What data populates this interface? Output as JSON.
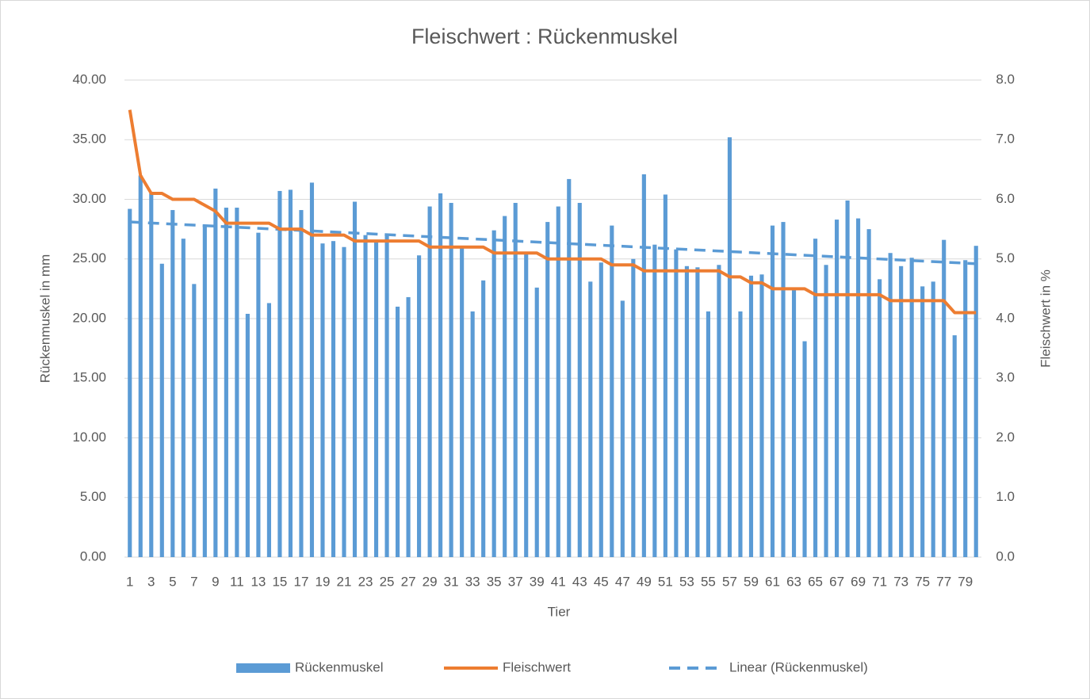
{
  "chart_data": {
    "type": "bar_line",
    "title": "Fleischwert : Rückenmuskel",
    "x_label": "Tier",
    "y_label": "Rückenmuskel in mm",
    "y2_label": "Fleischwert in %",
    "categories": [
      "1",
      null,
      "3",
      null,
      "5",
      null,
      "7",
      null,
      "9",
      null,
      "11",
      null,
      "13",
      null,
      "15",
      null,
      "17",
      null,
      "19",
      null,
      "21",
      null,
      "23",
      null,
      "25",
      null,
      "27",
      null,
      "29",
      null,
      "31",
      null,
      "33",
      null,
      "35",
      null,
      "37",
      null,
      "39",
      null,
      "41",
      null,
      "43",
      null,
      "45",
      null,
      "47",
      null,
      "49",
      null,
      "51",
      null,
      "53",
      null,
      "55",
      null,
      "57",
      null,
      "59",
      null,
      "61",
      null,
      "63",
      null,
      "65",
      null,
      "67",
      null,
      "69",
      null,
      "71",
      null,
      "73",
      null,
      "75",
      null,
      "77",
      null,
      "79",
      null
    ],
    "series": [
      {
        "name": "Rückenmuskel",
        "color": "#5b9bd5",
        "type": "bar",
        "axis": "y",
        "values": [
          29.2,
          32.0,
          30.5,
          24.6,
          29.1,
          26.7,
          22.9,
          27.7,
          30.9,
          29.3,
          29.3,
          20.4,
          27.2,
          21.3,
          30.7,
          30.8,
          29.1,
          31.4,
          26.3,
          26.5,
          26.0,
          29.8,
          27.0,
          26.5,
          27.1,
          21.0,
          21.8,
          25.3,
          29.4,
          30.5,
          29.7,
          26.0,
          20.6,
          23.2,
          27.4,
          28.6,
          29.7,
          25.5,
          22.6,
          28.1,
          29.4,
          31.7,
          29.7,
          23.1,
          24.7,
          27.8,
          21.5,
          25.0,
          32.1,
          26.2,
          30.4,
          25.8,
          24.4,
          24.3,
          20.6,
          24.5,
          35.2,
          20.6,
          23.6,
          23.7,
          27.8,
          28.1,
          22.5,
          18.1,
          26.7,
          24.5,
          28.3,
          29.9,
          28.4,
          27.5,
          23.3,
          25.5,
          24.4,
          25.1,
          22.7,
          23.1,
          26.6,
          18.6,
          24.9,
          26.1
        ]
      },
      {
        "name": "Fleischwert",
        "color": "#ed7d31",
        "type": "line",
        "axis": "y2",
        "values": [
          7.5,
          6.4,
          6.1,
          6.1,
          6.0,
          6.0,
          6.0,
          5.9,
          5.8,
          5.6,
          5.6,
          5.6,
          5.6,
          5.6,
          5.5,
          5.5,
          5.5,
          5.4,
          5.4,
          5.4,
          5.4,
          5.3,
          5.3,
          5.3,
          5.3,
          5.3,
          5.3,
          5.3,
          5.2,
          5.2,
          5.2,
          5.2,
          5.2,
          5.2,
          5.1,
          5.1,
          5.1,
          5.1,
          5.1,
          5.0,
          5.0,
          5.0,
          5.0,
          5.0,
          5.0,
          4.9,
          4.9,
          4.9,
          4.8,
          4.8,
          4.8,
          4.8,
          4.8,
          4.8,
          4.8,
          4.8,
          4.7,
          4.7,
          4.6,
          4.6,
          4.5,
          4.5,
          4.5,
          4.5,
          4.4,
          4.4,
          4.4,
          4.4,
          4.4,
          4.4,
          4.4,
          4.3,
          4.3,
          4.3,
          4.3,
          4.3,
          4.3,
          4.1,
          4.1,
          4.1
        ]
      }
    ],
    "trendline": {
      "name": "Linear (Rückenmuskel)",
      "color": "#5b9bd5",
      "kind": "linear",
      "of_series": 0
    },
    "ylim": [
      0,
      40
    ],
    "yticks": [
      {
        "value": 0,
        "label": "0.00"
      },
      {
        "value": 5,
        "label": "5.00"
      },
      {
        "value": 10,
        "label": "10.00"
      },
      {
        "value": 15,
        "label": "15.00"
      },
      {
        "value": 20,
        "label": "20.00"
      },
      {
        "value": 25,
        "label": "25.00"
      },
      {
        "value": 30,
        "label": "30.00"
      },
      {
        "value": 35,
        "label": "35.00"
      },
      {
        "value": 40,
        "label": "40.00"
      }
    ],
    "y2lim": [
      0,
      8
    ],
    "y2ticks": [
      {
        "value": 0,
        "label": "0.0"
      },
      {
        "value": 1,
        "label": "1.0"
      },
      {
        "value": 2,
        "label": "2.0"
      },
      {
        "value": 3,
        "label": "3.0"
      },
      {
        "value": 4,
        "label": "4.0"
      },
      {
        "value": 5,
        "label": "5.0"
      },
      {
        "value": 6,
        "label": "6.0"
      },
      {
        "value": 7,
        "label": "7.0"
      },
      {
        "value": 8,
        "label": "8.0"
      }
    ],
    "grid": true,
    "legend": "bottom"
  }
}
